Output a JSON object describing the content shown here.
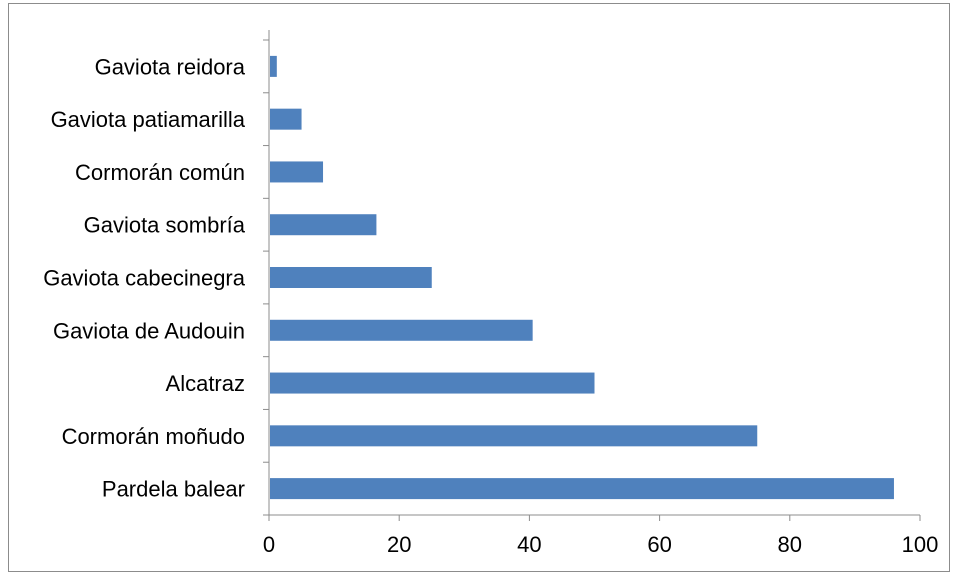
{
  "chart_data": {
    "type": "bar",
    "orientation": "horizontal",
    "title": "",
    "xlabel": "",
    "ylabel": "",
    "categories": [
      "Pardela balear",
      "Cormorán moñudo",
      "Alcatraz",
      "Gaviota de Audouin",
      "Gaviota cabecinegra",
      "Gaviota sombría",
      "Cormorán común",
      "Gaviota patiamarilla",
      "Gaviota reidora"
    ],
    "values": [
      96,
      75,
      50,
      40.5,
      25,
      16.5,
      8.3,
      5,
      1.2
    ],
    "xlim": [
      0,
      100
    ],
    "xticks": [
      "0",
      "20",
      "40",
      "60",
      "80",
      "100"
    ],
    "bar_color": "#4F81BD",
    "grid": false,
    "legend": "none"
  }
}
